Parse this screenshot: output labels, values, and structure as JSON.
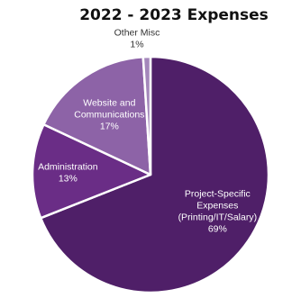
{
  "chart_data": {
    "type": "pie",
    "title": "2022 - 2023 Expenses",
    "slices": [
      {
        "label_lines": [
          "Project-Specific",
          "Expenses",
          "(Printing/IT/Salary)"
        ],
        "percent_label": "69%",
        "value": 69,
        "color": "#4f1f68",
        "text_color": "#ffffff"
      },
      {
        "label_lines": [
          "Administration"
        ],
        "percent_label": "13%",
        "value": 13,
        "color": "#6a2d86",
        "text_color": "#ffffff"
      },
      {
        "label_lines": [
          "Website and",
          "Communications"
        ],
        "percent_label": "17%",
        "value": 17,
        "color": "#8d63a7",
        "text_color": "#ffffff"
      },
      {
        "label_lines": [
          "Other Misc"
        ],
        "percent_label": "1%",
        "value": 1,
        "color": "#a487bb",
        "text_color": "#333333"
      }
    ]
  }
}
